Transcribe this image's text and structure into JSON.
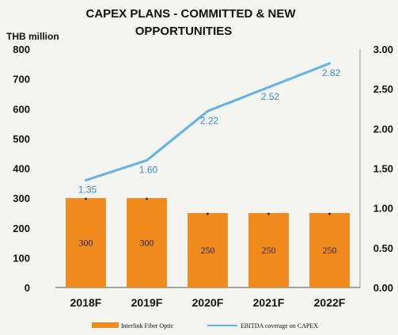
{
  "chart_data": {
    "type": "bar",
    "title_line1": "CAPEX PLANS - COMMITTED & NEW",
    "title_line2": "OPPORTUNITIES",
    "ylabel": "THB million",
    "categories": [
      "2018F",
      "2019F",
      "2020F",
      "2021F",
      "2022F"
    ],
    "ylim": [
      0,
      800
    ],
    "y_ticks": [
      "0",
      "100",
      "200",
      "300",
      "400",
      "500",
      "600",
      "700",
      "800"
    ],
    "y2lim": [
      0,
      3.0
    ],
    "y2_ticks": [
      "0.00",
      "0.50",
      "1.00",
      "1.50",
      "2.00",
      "2.50",
      "3.00"
    ],
    "series": [
      {
        "name": "Interlink Fiber Optic",
        "kind": "bar",
        "axis": "left",
        "color": "#f08a1c",
        "values": [
          300,
          300,
          250,
          250,
          250
        ],
        "labels": [
          "300",
          "300",
          "250",
          "250",
          "250"
        ]
      },
      {
        "name": "EBITDA coverage on CAPEX",
        "kind": "line",
        "axis": "right",
        "color": "#62b2e8",
        "values": [
          1.35,
          1.6,
          2.22,
          2.52,
          2.82
        ],
        "labels": [
          "1.35",
          "1.60",
          "2.22",
          "2.52",
          "2.82"
        ]
      }
    ],
    "grid": false,
    "legend_position": "bottom"
  }
}
